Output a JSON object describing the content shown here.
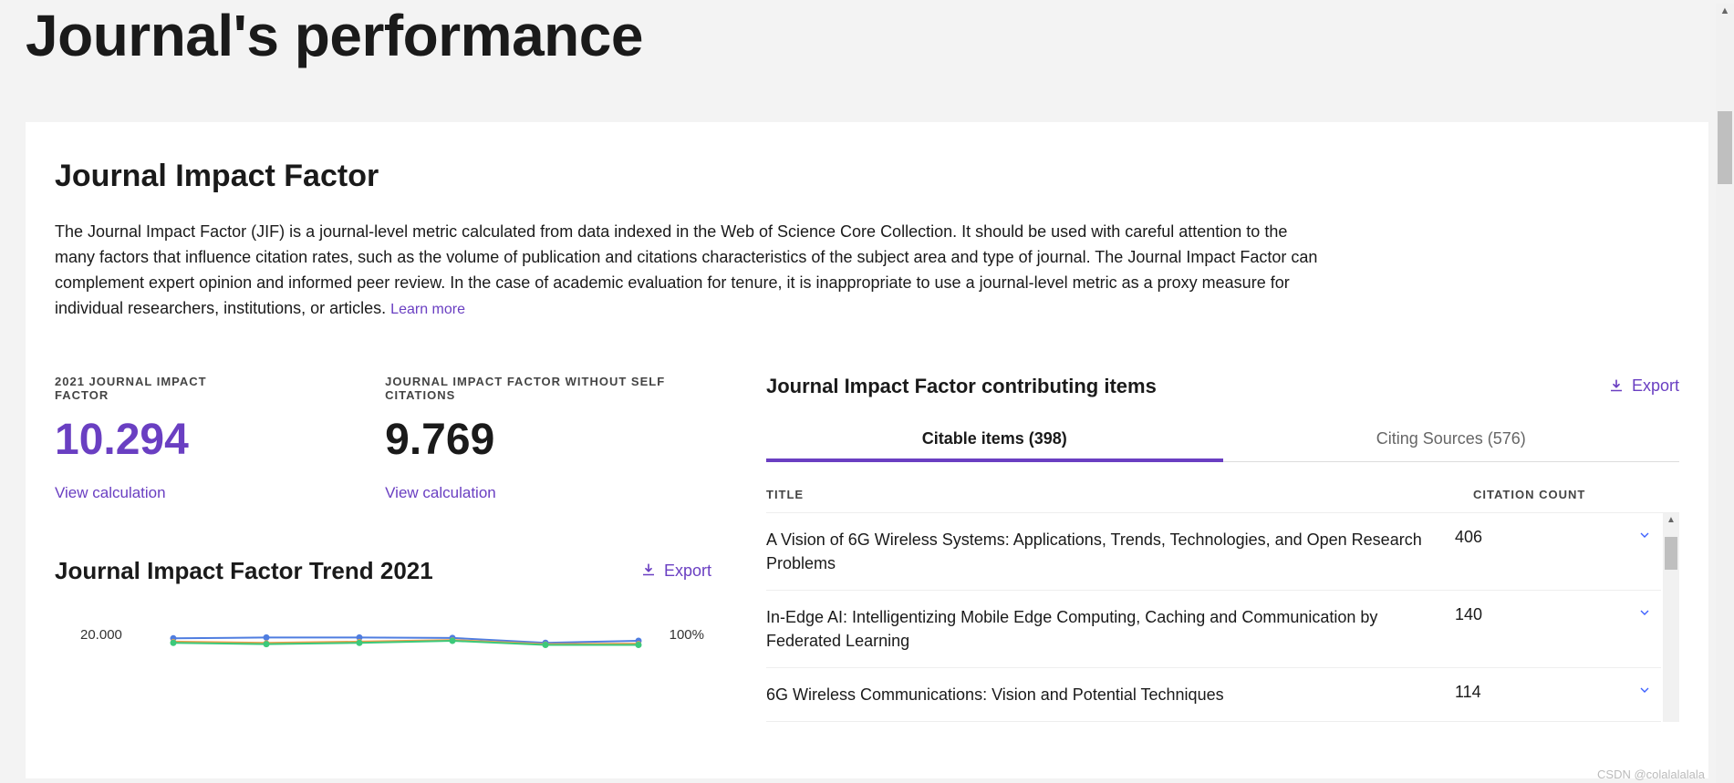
{
  "page": {
    "title": "Journal's performance"
  },
  "section": {
    "title": "Journal Impact Factor",
    "description": "The Journal Impact Factor (JIF) is a journal-level metric calculated from data indexed in the Web of Science Core Collection. It should be used with careful attention to the many factors that influence citation rates, such as the volume of publication and citations characteristics of the subject area and type of journal. The Journal Impact Factor can complement expert opinion and informed peer review. In the case of academic evaluation for tenure, it is inappropriate to use a journal-level metric as a proxy measure for individual researchers, institutions, or articles.",
    "learn_more": "Learn more"
  },
  "metrics": {
    "jif_label": "2021 JOURNAL IMPACT FACTOR",
    "jif_value": "10.294",
    "jif_link": "View calculation",
    "jif_noself_label": "JOURNAL IMPACT FACTOR WITHOUT SELF CITATIONS",
    "jif_noself_value": "9.769",
    "jif_noself_link": "View calculation"
  },
  "trend": {
    "title": "Journal Impact Factor Trend 2021",
    "export_label": "Export",
    "chart": {
      "type": "line",
      "ylim_left": [
        0,
        20
      ],
      "ytick_left_top": "20.000",
      "ylim_right": [
        0,
        100
      ],
      "ytick_right_top": "100%",
      "background_color": "#ffffff",
      "axis_color": "#dddddd",
      "series": [
        {
          "color": "#4f7de0",
          "marker": "circle",
          "marker_size": 7,
          "line_width": 2,
          "values": [
            18.6,
            18.8,
            18.8,
            18.7,
            17.5,
            18.0
          ]
        },
        {
          "color": "#f39c4a",
          "marker": "circle",
          "marker_size": 6,
          "line_width": 2,
          "values": [
            17.8,
            17.5,
            17.8,
            18.2,
            17.2,
            17.3
          ]
        },
        {
          "color": "#3cc97a",
          "marker": "circle",
          "marker_size": 7,
          "line_width": 2,
          "values": [
            17.5,
            17.2,
            17.5,
            18.0,
            17.0,
            17.0
          ]
        }
      ],
      "x_count": 6
    }
  },
  "contributing": {
    "title": "Journal Impact Factor contributing items",
    "export_label": "Export",
    "tabs": [
      {
        "label": "Citable items (398)",
        "active": true
      },
      {
        "label": "Citing Sources (576)",
        "active": false
      }
    ],
    "columns": {
      "title": "TITLE",
      "count": "CITATION COUNT"
    },
    "rows": [
      {
        "title": "A Vision of 6G Wireless Systems: Applications, Trends, Technologies, and Open Research Problems",
        "count": "406"
      },
      {
        "title": "In-Edge AI: Intelligentizing Mobile Edge Computing, Caching and Communication by Federated Learning",
        "count": "140"
      },
      {
        "title": "6G Wireless Communications: Vision and Potential Techniques",
        "count": "114"
      }
    ]
  },
  "watermark": "CSDN @colalalalala"
}
